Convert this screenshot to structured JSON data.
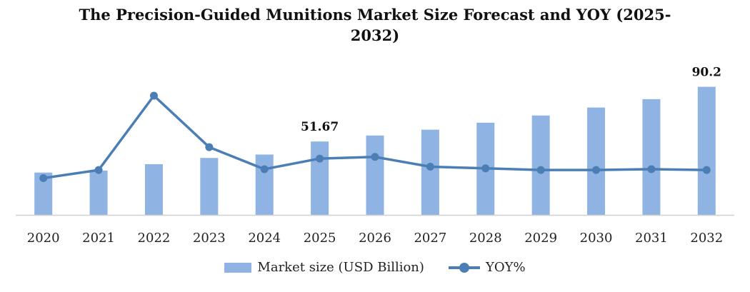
{
  "chart_data": {
    "type": "bar",
    "title": "The Precision-Guided Munitions Market Size Forecast and YOY (2025-2032)",
    "categories": [
      "2020",
      "2021",
      "2022",
      "2023",
      "2024",
      "2025",
      "2026",
      "2027",
      "2028",
      "2029",
      "2030",
      "2031",
      "2032"
    ],
    "series": [
      {
        "name": "Market size (USD Billion)",
        "type": "bar",
        "values": [
          29.8,
          31.2,
          35.7,
          40.1,
          42.5,
          51.67,
          55.9,
          60.0,
          64.9,
          70.0,
          75.6,
          81.5,
          90.2
        ]
      },
      {
        "name": "YOY%",
        "type": "line",
        "values": [
          3.5,
          4.5,
          13.6,
          7.3,
          4.6,
          5.9,
          6.1,
          4.9,
          4.7,
          4.5,
          4.5,
          4.6,
          4.5
        ]
      }
    ],
    "data_labels": [
      {
        "category": "2025",
        "text": "51.67"
      },
      {
        "category": "2032",
        "text": "90.2"
      }
    ],
    "y_axis_visible": false,
    "ylim_bar": [
      0,
      92
    ],
    "ylim_line": [
      -1,
      15
    ],
    "legend_position": "bottom",
    "grid": false,
    "colors": {
      "bar": "#8fb4e3",
      "line": "#4a7eb5",
      "axis": "#d0d0d0",
      "title": "#111111",
      "text": "#222222"
    }
  }
}
